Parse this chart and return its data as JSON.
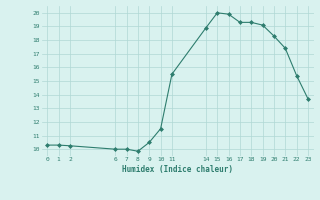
{
  "xlabel": "Humidex (Indice chaleur)",
  "x_values": [
    0,
    1,
    2,
    6,
    7,
    8,
    9,
    10,
    11,
    14,
    15,
    16,
    17,
    18,
    19,
    20,
    21,
    22,
    23
  ],
  "y_values": [
    10.3,
    10.3,
    10.25,
    10.0,
    10.0,
    9.85,
    10.5,
    11.5,
    15.5,
    18.9,
    20.0,
    19.9,
    19.3,
    19.3,
    19.1,
    18.3,
    17.4,
    15.4,
    13.7
  ],
  "line_color": "#2e7d6e",
  "marker_color": "#2e7d6e",
  "bg_color": "#d9f2ef",
  "grid_color": "#b0d8d4",
  "tick_label_color": "#2e7d6e",
  "xlabel_color": "#2e7d6e",
  "ylim": [
    9.5,
    20.5
  ],
  "yticks": [
    10,
    11,
    12,
    13,
    14,
    15,
    16,
    17,
    18,
    19,
    20
  ],
  "xticks": [
    0,
    1,
    2,
    6,
    7,
    8,
    9,
    10,
    11,
    14,
    15,
    16,
    17,
    18,
    19,
    20,
    21,
    22,
    23
  ]
}
